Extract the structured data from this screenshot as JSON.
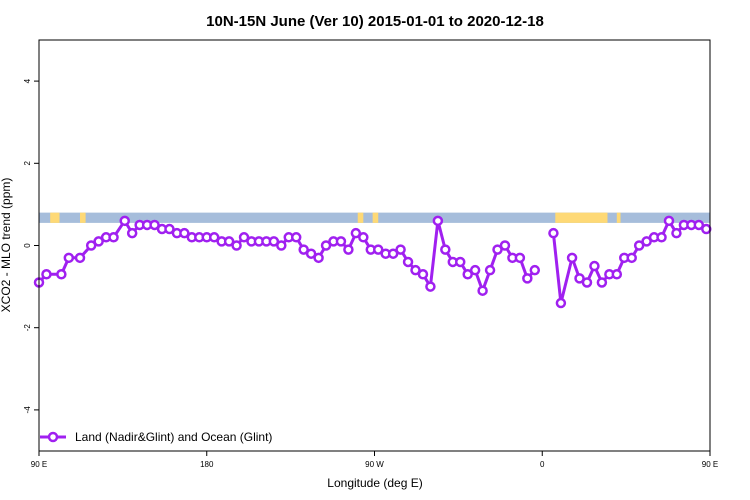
{
  "chart_data": {
    "type": "line",
    "title": "10N-15N June (Ver 10)   2015-01-01 to 2020-12-18",
    "xlabel": "Longitude (deg E)",
    "ylabel": "XCO2 - MLO trend (ppm)",
    "xlim": [
      90,
      450
    ],
    "ylim": [
      -5,
      5
    ],
    "x_ticks": [
      {
        "value": 90,
        "label": "90 E"
      },
      {
        "value": 180,
        "label": "180"
      },
      {
        "value": 270,
        "label": "90 W"
      },
      {
        "value": 360,
        "label": "0"
      },
      {
        "value": 450,
        "label": "90 E"
      },
      {
        "value": 540,
        "label": "180"
      }
    ],
    "y_ticks": [
      -4,
      -2,
      0,
      2,
      4
    ],
    "grid": false,
    "legend_position": "bottom-left",
    "series": [
      {
        "name": "Land (Nadir&Glint) and Ocean (Glint)",
        "color": "#a020f0",
        "points": [
          [
            90,
            -0.9
          ],
          [
            94,
            -0.7
          ],
          [
            102,
            -0.7
          ],
          [
            106,
            -0.3
          ],
          [
            112,
            -0.3
          ],
          [
            118,
            0.0
          ],
          [
            122,
            0.1
          ],
          [
            126,
            0.2
          ],
          [
            130,
            0.2
          ],
          [
            136,
            0.6
          ],
          [
            140,
            0.3
          ],
          [
            144,
            0.5
          ],
          [
            148,
            0.5
          ],
          [
            152,
            0.5
          ],
          [
            156,
            0.4
          ],
          [
            160,
            0.4
          ],
          [
            164,
            0.3
          ],
          [
            168,
            0.3
          ],
          [
            172,
            0.2
          ],
          [
            176,
            0.2
          ],
          [
            180,
            0.2
          ],
          [
            184,
            0.2
          ],
          [
            188,
            0.1
          ],
          [
            192,
            0.1
          ],
          [
            196,
            0.0
          ],
          [
            200,
            0.2
          ],
          [
            204,
            0.1
          ],
          [
            208,
            0.1
          ],
          [
            212,
            0.1
          ],
          [
            216,
            0.1
          ],
          [
            220,
            0.0
          ],
          [
            224,
            0.2
          ],
          [
            228,
            0.2
          ],
          [
            232,
            -0.1
          ],
          [
            236,
            -0.2
          ],
          [
            240,
            -0.3
          ],
          [
            244,
            0.0
          ],
          [
            248,
            0.1
          ],
          [
            252,
            0.1
          ],
          [
            256,
            -0.1
          ],
          [
            260,
            0.3
          ],
          [
            264,
            0.2
          ],
          [
            268,
            -0.1
          ],
          [
            272,
            -0.1
          ],
          [
            276,
            -0.2
          ],
          [
            280,
            -0.2
          ],
          [
            284,
            -0.1
          ],
          [
            288,
            -0.4
          ],
          [
            292,
            -0.6
          ],
          [
            296,
            -0.7
          ],
          [
            300,
            -1.0
          ],
          [
            304,
            0.6
          ],
          [
            308,
            -0.1
          ],
          [
            312,
            -0.4
          ],
          [
            316,
            -0.4
          ],
          [
            320,
            -0.7
          ],
          [
            324,
            -0.6
          ],
          [
            328,
            -1.1
          ],
          [
            332,
            -0.6
          ],
          [
            336,
            -0.1
          ],
          [
            340,
            0.0
          ],
          [
            344,
            -0.3
          ],
          [
            348,
            -0.3
          ],
          [
            352,
            -0.8
          ],
          [
            356,
            -0.6
          ],
          [
            null,
            null
          ],
          [
            366,
            0.3
          ],
          [
            370,
            -1.4
          ],
          [
            376,
            -0.3
          ],
          [
            380,
            -0.8
          ],
          [
            384,
            -0.9
          ],
          [
            388,
            -0.5
          ],
          [
            392,
            -0.9
          ],
          [
            396,
            -0.7
          ],
          [
            400,
            -0.7
          ],
          [
            404,
            -0.3
          ],
          [
            408,
            -0.3
          ],
          [
            412,
            0.0
          ],
          [
            416,
            0.1
          ],
          [
            420,
            0.2
          ],
          [
            424,
            0.2
          ],
          [
            428,
            0.6
          ],
          [
            432,
            0.3
          ],
          [
            436,
            0.5
          ],
          [
            440,
            0.5
          ],
          [
            444,
            0.5
          ],
          [
            448,
            0.4
          ],
          [
            452,
            0.4
          ],
          [
            456,
            0.3
          ],
          [
            460,
            0.3
          ]
        ]
      }
    ],
    "surface_band": {
      "ylim": [
        0.55,
        0.8
      ],
      "ocean_color": "#a6bddb",
      "land_color": "#fed976",
      "land_ranges": [
        [
          96,
          101
        ],
        [
          112,
          115
        ],
        [
          261,
          264
        ],
        [
          269,
          272
        ],
        [
          367,
          395
        ],
        [
          400,
          402
        ],
        [
          498,
          505
        ],
        [
          524,
          531
        ],
        [
          542,
          545
        ]
      ]
    }
  }
}
